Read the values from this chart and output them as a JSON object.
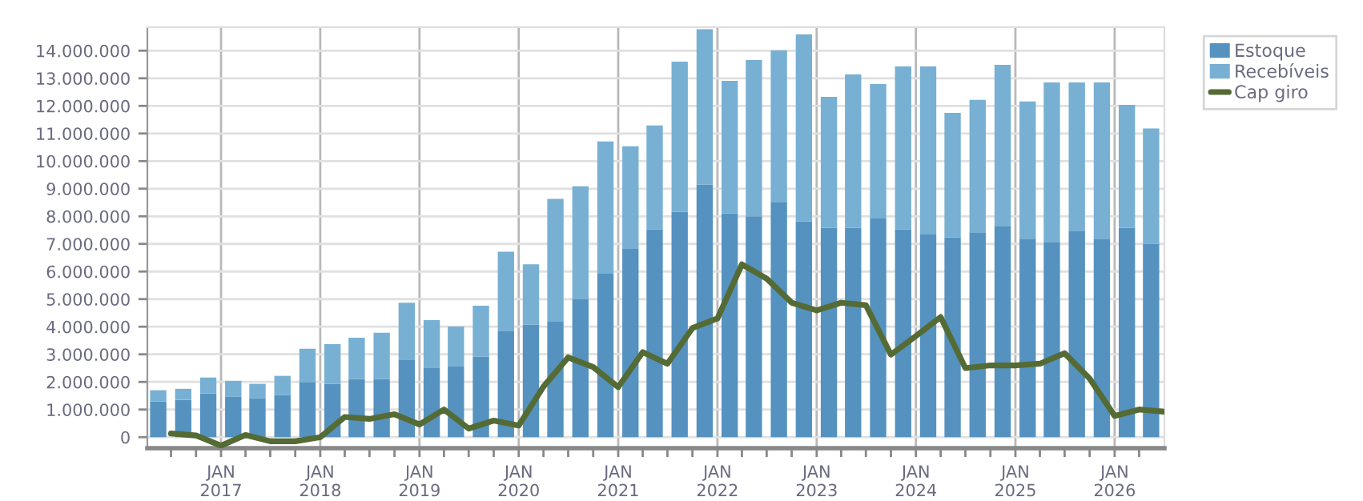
{
  "chart_data": {
    "type": "bar",
    "stacked": true,
    "x": [
      "2016-05-15",
      "2016-08-15",
      "2016-11-15",
      "2017-02-15",
      "2017-05-15",
      "2017-08-15",
      "2017-11-15",
      "2018-02-15",
      "2018-05-15",
      "2018-08-15",
      "2018-11-15",
      "2019-02-15",
      "2019-05-15",
      "2019-08-15",
      "2019-11-15",
      "2020-02-15",
      "2020-05-15",
      "2020-08-15",
      "2020-11-15",
      "2021-02-15",
      "2021-05-15",
      "2021-08-15",
      "2021-11-15",
      "2022-02-15",
      "2022-05-15",
      "2022-08-15",
      "2022-11-15",
      "2023-02-15",
      "2023-05-15",
      "2023-08-15",
      "2023-11-15",
      "2024-02-15",
      "2024-05-15",
      "2024-08-15",
      "2024-11-15",
      "2025-02-15",
      "2025-05-15",
      "2025-08-15",
      "2025-11-15",
      "2026-02-15",
      "2026-05-15"
    ],
    "series": [
      {
        "name": "Estoque",
        "color": "#5592c0",
        "values": [
          1290000,
          1350000,
          1580000,
          1460000,
          1410000,
          1520000,
          1980000,
          1930000,
          2100000,
          2100000,
          2790000,
          2500000,
          2560000,
          2910000,
          3830000,
          4070000,
          4180000,
          4990000,
          5920000,
          6840000,
          7530000,
          8170000,
          9150000,
          8110000,
          8000000,
          8520000,
          7820000,
          7590000,
          7590000,
          7940000,
          7530000,
          7360000,
          7240000,
          7420000,
          7650000,
          7190000,
          7070000,
          7480000,
          7190000,
          7590000,
          7010000
        ]
      },
      {
        "name": "Recebíveis",
        "color": "#78b0d3",
        "values": [
          410000,
          400000,
          580000,
          580000,
          520000,
          700000,
          1220000,
          1440000,
          1500000,
          1680000,
          2080000,
          1740000,
          1450000,
          1850000,
          2890000,
          2190000,
          4450000,
          4100000,
          4790000,
          3700000,
          3760000,
          5430000,
          5630000,
          4800000,
          5660000,
          5490000,
          6770000,
          4740000,
          5550000,
          4850000,
          5900000,
          6070000,
          4510000,
          4800000,
          5840000,
          4970000,
          5780000,
          5370000,
          5660000,
          4450000,
          4170000
        ]
      },
      {
        "name": "Cap giro",
        "type": "line",
        "color": "#556b35",
        "line_style": "solid",
        "marker": "none",
        "x": [
          "2016-07-01",
          "2016-10-01",
          "2017-01-01",
          "2017-04-01",
          "2017-07-01",
          "2017-10-01",
          "2018-01-01",
          "2018-04-01",
          "2018-07-01",
          "2018-10-01",
          "2019-01-01",
          "2019-04-01",
          "2019-07-01",
          "2019-10-01",
          "2020-01-01",
          "2020-04-01",
          "2020-07-01",
          "2020-10-01",
          "2021-01-01",
          "2021-04-01",
          "2021-07-01",
          "2021-10-01",
          "2022-01-01",
          "2022-04-01",
          "2022-07-01",
          "2022-10-01",
          "2023-01-01",
          "2023-04-01",
          "2023-07-01",
          "2023-10-01",
          "2024-01-01",
          "2024-04-01",
          "2024-07-01",
          "2024-10-01",
          "2025-01-01",
          "2025-04-01",
          "2025-07-01",
          "2025-10-01",
          "2026-01-01",
          "2026-04-01",
          "2026-07-01"
        ],
        "values": [
          130000,
          60000,
          -310000,
          80000,
          -150000,
          -150000,
          0,
          730000,
          660000,
          830000,
          460000,
          1000000,
          310000,
          600000,
          420000,
          1830000,
          2890000,
          2540000,
          1810000,
          3080000,
          2660000,
          3950000,
          4300000,
          6260000,
          5740000,
          4870000,
          4590000,
          4870000,
          4780000,
          2990000,
          3660000,
          4350000,
          2500000,
          2600000,
          2600000,
          2660000,
          3040000,
          2120000,
          770000,
          1000000,
          920000
        ]
      }
    ],
    "xlim": [
      "2016-04-05",
      "2026-07-03"
    ],
    "xticks": [
      {
        "value": "2016-07-01",
        "label": null
      },
      {
        "value": "2016-10-01",
        "label": null
      },
      {
        "value": "2017-01-01",
        "label": "JAN\n2017"
      },
      {
        "value": "2017-04-01",
        "label": null
      },
      {
        "value": "2017-07-01",
        "label": null
      },
      {
        "value": "2017-10-01",
        "label": null
      },
      {
        "value": "2018-01-01",
        "label": "JAN\n2018"
      },
      {
        "value": "2018-04-01",
        "label": null
      },
      {
        "value": "2018-07-01",
        "label": null
      },
      {
        "value": "2018-10-01",
        "label": null
      },
      {
        "value": "2019-01-01",
        "label": "JAN\n2019"
      },
      {
        "value": "2019-04-01",
        "label": null
      },
      {
        "value": "2019-07-01",
        "label": null
      },
      {
        "value": "2019-10-01",
        "label": null
      },
      {
        "value": "2020-01-01",
        "label": "JAN\n2020"
      },
      {
        "value": "2020-04-01",
        "label": null
      },
      {
        "value": "2020-07-01",
        "label": null
      },
      {
        "value": "2020-10-01",
        "label": null
      },
      {
        "value": "2021-01-01",
        "label": "JAN\n2021"
      },
      {
        "value": "2021-04-01",
        "label": null
      },
      {
        "value": "2021-07-01",
        "label": null
      },
      {
        "value": "2021-10-01",
        "label": null
      },
      {
        "value": "2022-01-01",
        "label": "JAN\n2022"
      },
      {
        "value": "2022-04-01",
        "label": null
      },
      {
        "value": "2022-07-01",
        "label": null
      },
      {
        "value": "2022-10-01",
        "label": null
      },
      {
        "value": "2023-01-01",
        "label": "JAN\n2023"
      },
      {
        "value": "2023-04-01",
        "label": null
      },
      {
        "value": "2023-07-01",
        "label": null
      },
      {
        "value": "2023-10-01",
        "label": null
      },
      {
        "value": "2024-01-01",
        "label": "JAN\n2024"
      },
      {
        "value": "2024-04-01",
        "label": null
      },
      {
        "value": "2024-07-01",
        "label": null
      },
      {
        "value": "2024-10-01",
        "label": null
      },
      {
        "value": "2025-01-01",
        "label": "JAN\n2025"
      },
      {
        "value": "2025-04-01",
        "label": null
      },
      {
        "value": "2025-07-01",
        "label": null
      },
      {
        "value": "2025-10-01",
        "label": null
      },
      {
        "value": "2026-01-01",
        "label": "JAN\n2026"
      },
      {
        "value": "2026-04-01",
        "label": null
      }
    ],
    "ylim": [
      -400000,
      14850000
    ],
    "yticks": [
      {
        "value": 0,
        "label": "0"
      },
      {
        "value": 1000000,
        "label": "1.000.000"
      },
      {
        "value": 2000000,
        "label": "2.000.000"
      },
      {
        "value": 3000000,
        "label": "3.000.000"
      },
      {
        "value": 4000000,
        "label": "4.000.000"
      },
      {
        "value": 5000000,
        "label": "5.000.000"
      },
      {
        "value": 6000000,
        "label": "6.000.000"
      },
      {
        "value": 7000000,
        "label": "7.000.000"
      },
      {
        "value": 8000000,
        "label": "8.000.000"
      },
      {
        "value": 9000000,
        "label": "9.000.000"
      },
      {
        "value": 10000000,
        "label": "10.000.000"
      },
      {
        "value": 11000000,
        "label": "11.000.000"
      },
      {
        "value": 12000000,
        "label": "12.000.000"
      },
      {
        "value": 13000000,
        "label": "13.000.000"
      },
      {
        "value": 14000000,
        "label": "14.000.000"
      }
    ],
    "grid": true,
    "legend": "top right"
  }
}
